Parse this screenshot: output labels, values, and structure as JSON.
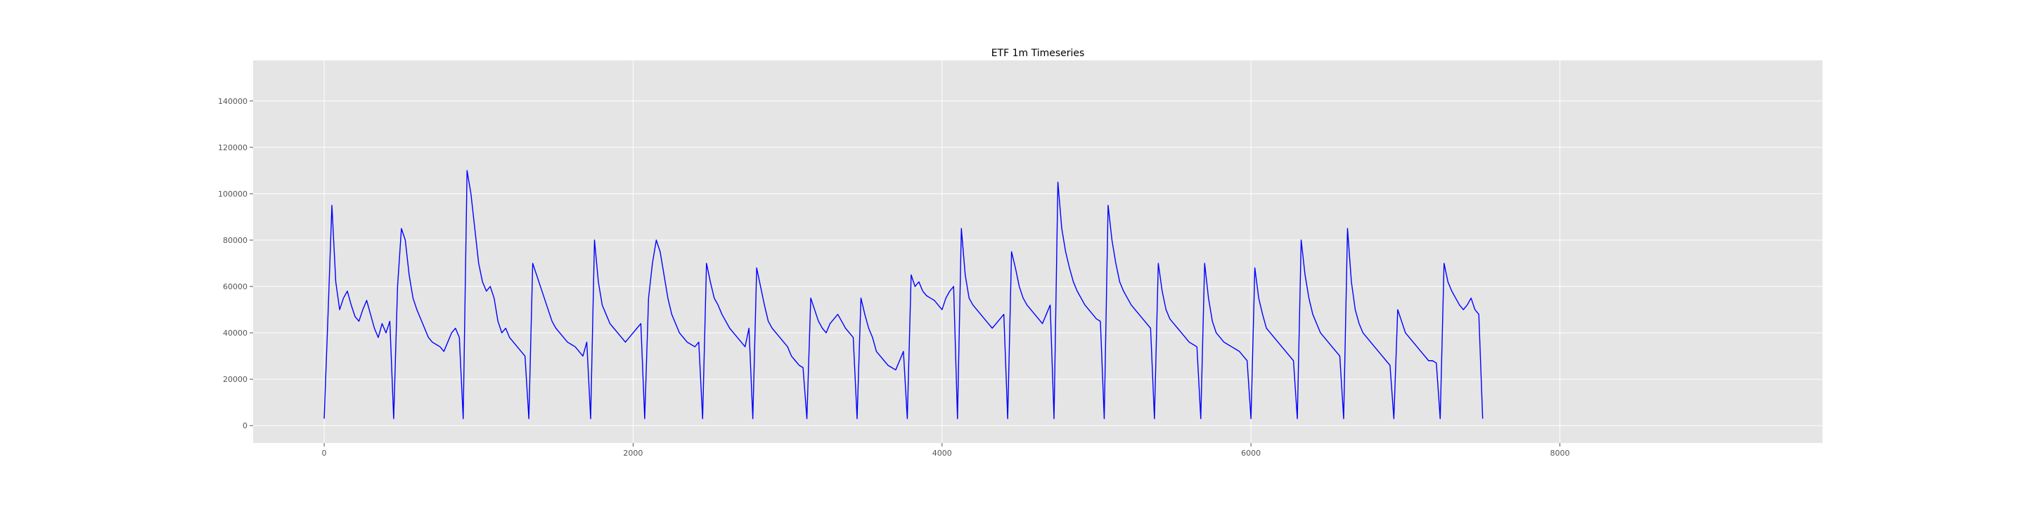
{
  "chart_data": {
    "type": "line",
    "title": "ETF 1m Timeseries",
    "xlabel": "",
    "ylabel": "",
    "xlim": [
      -460,
      9700
    ],
    "ylim": [
      -7500,
      157500
    ],
    "xticks": [
      0,
      2000,
      4000,
      6000,
      8000
    ],
    "yticks": [
      0,
      20000,
      40000,
      60000,
      80000,
      100000,
      120000,
      140000
    ],
    "grid": true,
    "legend": "none",
    "colors": {
      "line": "#0000ff",
      "plot_bg": "#e5e5e5",
      "grid": "#ffffff",
      "tick_text": "#555555",
      "title": "#000000"
    },
    "series": [
      {
        "x_start": 0,
        "x_step": 25,
        "values": [
          3000,
          48000,
          95000,
          62000,
          50000,
          55000,
          58000,
          52000,
          47000,
          45000,
          50000,
          54000,
          48000,
          42000,
          38000,
          44000,
          40000,
          45000,
          3000,
          60000,
          85000,
          80000,
          65000,
          55000,
          50000,
          46000,
          42000,
          38000,
          36000,
          35000,
          34000,
          32000,
          36000,
          40000,
          42000,
          38000,
          3000,
          110000,
          100000,
          85000,
          70000,
          62000,
          58000,
          60000,
          55000,
          45000,
          40000,
          42000,
          38000,
          36000,
          34000,
          32000,
          30000,
          3000,
          70000,
          65000,
          60000,
          55000,
          50000,
          45000,
          42000,
          40000,
          38000,
          36000,
          35000,
          34000,
          32000,
          30000,
          36000,
          3000,
          80000,
          62000,
          52000,
          48000,
          44000,
          42000,
          40000,
          38000,
          36000,
          38000,
          40000,
          42000,
          44000,
          3000,
          55000,
          70000,
          80000,
          75000,
          65000,
          55000,
          48000,
          44000,
          40000,
          38000,
          36000,
          35000,
          34000,
          36000,
          3000,
          70000,
          62000,
          55000,
          52000,
          48000,
          45000,
          42000,
          40000,
          38000,
          36000,
          34000,
          42000,
          3000,
          68000,
          60000,
          52000,
          45000,
          42000,
          40000,
          38000,
          36000,
          34000,
          30000,
          28000,
          26000,
          25000,
          3000,
          55000,
          50000,
          45000,
          42000,
          40000,
          44000,
          46000,
          48000,
          45000,
          42000,
          40000,
          38000,
          3000,
          55000,
          48000,
          42000,
          38000,
          32000,
          30000,
          28000,
          26000,
          25000,
          24000,
          28000,
          32000,
          3000,
          65000,
          60000,
          62000,
          58000,
          56000,
          55000,
          54000,
          52000,
          50000,
          55000,
          58000,
          60000,
          3000,
          85000,
          65000,
          55000,
          52000,
          50000,
          48000,
          46000,
          44000,
          42000,
          44000,
          46000,
          48000,
          3000,
          75000,
          68000,
          60000,
          55000,
          52000,
          50000,
          48000,
          46000,
          44000,
          48000,
          52000,
          3000,
          105000,
          85000,
          75000,
          68000,
          62000,
          58000,
          55000,
          52000,
          50000,
          48000,
          46000,
          45000,
          3000,
          95000,
          80000,
          70000,
          62000,
          58000,
          55000,
          52000,
          50000,
          48000,
          46000,
          44000,
          42000,
          3000,
          70000,
          58000,
          50000,
          46000,
          44000,
          42000,
          40000,
          38000,
          36000,
          35000,
          34000,
          3000,
          70000,
          55000,
          45000,
          40000,
          38000,
          36000,
          35000,
          34000,
          33000,
          32000,
          30000,
          28000,
          3000,
          68000,
          55000,
          48000,
          42000,
          40000,
          38000,
          36000,
          34000,
          32000,
          30000,
          28000,
          3000,
          80000,
          65000,
          55000,
          48000,
          44000,
          40000,
          38000,
          36000,
          34000,
          32000,
          30000,
          3000,
          85000,
          62000,
          50000,
          44000,
          40000,
          38000,
          36000,
          34000,
          32000,
          30000,
          28000,
          26000,
          3000,
          50000,
          45000,
          40000,
          38000,
          36000,
          34000,
          32000,
          30000,
          28000,
          28000,
          27000,
          3000,
          70000,
          62000,
          58000,
          55000,
          52000,
          50000,
          52000,
          55000,
          50000,
          48000,
          3000
        ]
      }
    ]
  }
}
